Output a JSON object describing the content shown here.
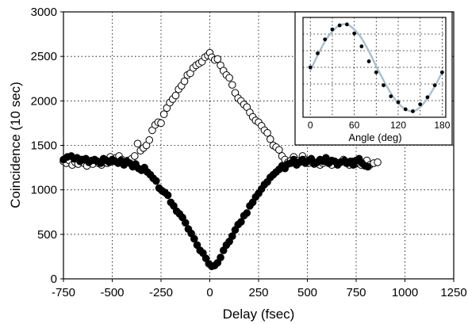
{
  "chart_data": [
    {
      "type": "scatter",
      "xlabel": "Delay (fsec)",
      "ylabel": "Coincidence (10 sec)",
      "xlim": [
        -750,
        1250
      ],
      "ylim": [
        0,
        3000
      ],
      "x_ticks": [
        -750,
        -500,
        -250,
        0,
        250,
        500,
        750,
        1000,
        1250
      ],
      "y_ticks": [
        0,
        500,
        1000,
        1500,
        2000,
        2500,
        3000
      ],
      "x_tick_labels": [
        "-750",
        "-500",
        "-250",
        "0",
        "250",
        "500",
        "750",
        "1000",
        "1250"
      ],
      "y_tick_labels": [
        "0",
        "500",
        "1000",
        "1500",
        "2000",
        "2500",
        "3000"
      ],
      "grid": true,
      "series": [
        {
          "marker": "open-circle",
          "points": [
            [
              -750,
              1320
            ],
            [
              -735,
              1300
            ],
            [
              -720,
              1330
            ],
            [
              -705,
              1280
            ],
            [
              -690,
              1310
            ],
            [
              -675,
              1290
            ],
            [
              -660,
              1340
            ],
            [
              -645,
              1300
            ],
            [
              -630,
              1270
            ],
            [
              -615,
              1320
            ],
            [
              -600,
              1290
            ],
            [
              -585,
              1330
            ],
            [
              -570,
              1300
            ],
            [
              -555,
              1280
            ],
            [
              -540,
              1310
            ],
            [
              -525,
              1300
            ],
            [
              -510,
              1370
            ],
            [
              -495,
              1320
            ],
            [
              -480,
              1360
            ],
            [
              -465,
              1380
            ],
            [
              -450,
              1340
            ],
            [
              -435,
              1300
            ],
            [
              -420,
              1330
            ],
            [
              -400,
              1350
            ],
            [
              -385,
              1380
            ],
            [
              -370,
              1520
            ],
            [
              -355,
              1440
            ],
            [
              -340,
              1470
            ],
            [
              -325,
              1500
            ],
            [
              -310,
              1560
            ],
            [
              -295,
              1670
            ],
            [
              -280,
              1730
            ],
            [
              -265,
              1760
            ],
            [
              -250,
              1750
            ],
            [
              -235,
              1850
            ],
            [
              -220,
              1920
            ],
            [
              -205,
              1980
            ],
            [
              -190,
              2020
            ],
            [
              -175,
              2060
            ],
            [
              -160,
              2130
            ],
            [
              -145,
              2170
            ],
            [
              -130,
              2220
            ],
            [
              -115,
              2290
            ],
            [
              -100,
              2310
            ],
            [
              -85,
              2370
            ],
            [
              -70,
              2400
            ],
            [
              -55,
              2420
            ],
            [
              -40,
              2440
            ],
            [
              -25,
              2490
            ],
            [
              -10,
              2510
            ],
            [
              0,
              2540
            ],
            [
              10,
              2490
            ],
            [
              25,
              2460
            ],
            [
              40,
              2470
            ],
            [
              55,
              2400
            ],
            [
              70,
              2340
            ],
            [
              85,
              2290
            ],
            [
              100,
              2260
            ],
            [
              115,
              2180
            ],
            [
              130,
              2090
            ],
            [
              145,
              2030
            ],
            [
              160,
              2000
            ],
            [
              175,
              1960
            ],
            [
              190,
              1930
            ],
            [
              205,
              1870
            ],
            [
              220,
              1820
            ],
            [
              235,
              1780
            ],
            [
              250,
              1760
            ],
            [
              265,
              1720
            ],
            [
              280,
              1670
            ],
            [
              295,
              1640
            ],
            [
              310,
              1570
            ],
            [
              325,
              1500
            ],
            [
              340,
              1480
            ],
            [
              355,
              1450
            ],
            [
              370,
              1380
            ],
            [
              385,
              1340
            ],
            [
              400,
              1310
            ],
            [
              415,
              1330
            ],
            [
              430,
              1370
            ],
            [
              445,
              1330
            ],
            [
              460,
              1310
            ],
            [
              475,
              1380
            ],
            [
              490,
              1340
            ],
            [
              505,
              1300
            ],
            [
              520,
              1320
            ],
            [
              535,
              1290
            ],
            [
              550,
              1310
            ],
            [
              565,
              1280
            ],
            [
              580,
              1300
            ],
            [
              595,
              1320
            ],
            [
              610,
              1300
            ],
            [
              625,
              1280
            ],
            [
              640,
              1320
            ],
            [
              655,
              1290
            ],
            [
              670,
              1310
            ],
            [
              685,
              1340
            ],
            [
              700,
              1300
            ],
            [
              715,
              1280
            ],
            [
              730,
              1320
            ],
            [
              745,
              1290
            ],
            [
              760,
              1310
            ],
            [
              775,
              1280
            ],
            [
              790,
              1300
            ],
            [
              805,
              1330
            ],
            [
              820,
              1280
            ],
            [
              840,
              1300
            ],
            [
              860,
              1310
            ]
          ]
        },
        {
          "marker": "filled-circle",
          "points": [
            [
              -750,
              1340
            ],
            [
              -730,
              1370
            ],
            [
              -710,
              1380
            ],
            [
              -695,
              1350
            ],
            [
              -680,
              1360
            ],
            [
              -665,
              1320
            ],
            [
              -650,
              1340
            ],
            [
              -635,
              1350
            ],
            [
              -620,
              1310
            ],
            [
              -605,
              1330
            ],
            [
              -590,
              1340
            ],
            [
              -575,
              1320
            ],
            [
              -560,
              1300
            ],
            [
              -545,
              1350
            ],
            [
              -530,
              1330
            ],
            [
              -515,
              1310
            ],
            [
              -500,
              1340
            ],
            [
              -485,
              1320
            ],
            [
              -470,
              1300
            ],
            [
              -455,
              1330
            ],
            [
              -440,
              1280
            ],
            [
              -425,
              1320
            ],
            [
              -410,
              1300
            ],
            [
              -395,
              1260
            ],
            [
              -380,
              1290
            ],
            [
              -365,
              1240
            ],
            [
              -350,
              1220
            ],
            [
              -335,
              1250
            ],
            [
              -320,
              1200
            ],
            [
              -305,
              1170
            ],
            [
              -290,
              1130
            ],
            [
              -275,
              1100
            ],
            [
              -260,
              1020
            ],
            [
              -245,
              990
            ],
            [
              -230,
              970
            ],
            [
              -215,
              940
            ],
            [
              -200,
              860
            ],
            [
              -185,
              820
            ],
            [
              -170,
              760
            ],
            [
              -155,
              730
            ],
            [
              -140,
              690
            ],
            [
              -125,
              630
            ],
            [
              -110,
              560
            ],
            [
              -95,
              510
            ],
            [
              -80,
              450
            ],
            [
              -65,
              380
            ],
            [
              -50,
              320
            ],
            [
              -35,
              290
            ],
            [
              -20,
              230
            ],
            [
              -5,
              170
            ],
            [
              10,
              140
            ],
            [
              25,
              150
            ],
            [
              40,
              180
            ],
            [
              55,
              240
            ],
            [
              70,
              320
            ],
            [
              85,
              380
            ],
            [
              100,
              420
            ],
            [
              115,
              480
            ],
            [
              130,
              550
            ],
            [
              145,
              610
            ],
            [
              160,
              640
            ],
            [
              175,
              710
            ],
            [
              190,
              740
            ],
            [
              205,
              820
            ],
            [
              220,
              860
            ],
            [
              235,
              920
            ],
            [
              250,
              960
            ],
            [
              265,
              1010
            ],
            [
              280,
              1060
            ],
            [
              295,
              1090
            ],
            [
              310,
              1140
            ],
            [
              325,
              1170
            ],
            [
              340,
              1200
            ],
            [
              355,
              1230
            ],
            [
              370,
              1270
            ],
            [
              385,
              1240
            ],
            [
              400,
              1290
            ],
            [
              415,
              1300
            ],
            [
              430,
              1340
            ],
            [
              445,
              1280
            ],
            [
              460,
              1310
            ],
            [
              475,
              1340
            ],
            [
              490,
              1300
            ],
            [
              505,
              1330
            ],
            [
              520,
              1350
            ],
            [
              535,
              1300
            ],
            [
              550,
              1310
            ],
            [
              565,
              1340
            ],
            [
              580,
              1320
            ],
            [
              595,
              1360
            ],
            [
              610,
              1300
            ],
            [
              625,
              1330
            ],
            [
              640,
              1320
            ],
            [
              655,
              1280
            ],
            [
              670,
              1310
            ],
            [
              690,
              1330
            ],
            [
              705,
              1300
            ],
            [
              720,
              1320
            ],
            [
              735,
              1280
            ],
            [
              750,
              1330
            ],
            [
              765,
              1350
            ],
            [
              780,
              1300
            ],
            [
              795,
              1270
            ],
            [
              810,
              1260
            ]
          ]
        }
      ]
    },
    {
      "type": "scatter",
      "xlabel": "Angle (deg)",
      "xlim": [
        -10,
        185
      ],
      "ylim": [
        0,
        1
      ],
      "x_ticks": [
        0,
        60,
        120,
        180
      ],
      "x_tick_labels": [
        "0",
        "60",
        "120",
        "180"
      ],
      "grid": true,
      "series": [
        {
          "marker": "filled-dot",
          "points": [
            [
              0,
              0.5
            ],
            [
              10,
              0.64
            ],
            [
              20,
              0.78
            ],
            [
              30,
              0.88
            ],
            [
              40,
              0.92
            ],
            [
              50,
              0.93
            ],
            [
              60,
              0.84
            ],
            [
              70,
              0.71
            ],
            [
              80,
              0.56
            ],
            [
              90,
              0.45
            ],
            [
              100,
              0.32
            ],
            [
              110,
              0.21
            ],
            [
              120,
              0.15
            ],
            [
              130,
              0.08
            ],
            [
              140,
              0.06
            ],
            [
              150,
              0.13
            ],
            [
              160,
              0.2
            ],
            [
              170,
              0.32
            ],
            [
              180,
              0.45
            ]
          ]
        },
        {
          "marker": "line",
          "color": "#a9bfcf",
          "points": [
            [
              0,
              0.47
            ],
            [
              10,
              0.62
            ],
            [
              20,
              0.76
            ],
            [
              30,
              0.86
            ],
            [
              40,
              0.92
            ],
            [
              50,
              0.93
            ],
            [
              60,
              0.88
            ],
            [
              70,
              0.79
            ],
            [
              80,
              0.66
            ],
            [
              90,
              0.51
            ],
            [
              100,
              0.37
            ],
            [
              110,
              0.24
            ],
            [
              120,
              0.14
            ],
            [
              130,
              0.08
            ],
            [
              140,
              0.06
            ],
            [
              150,
              0.1
            ],
            [
              160,
              0.19
            ],
            [
              170,
              0.31
            ],
            [
              180,
              0.45
            ]
          ]
        }
      ]
    }
  ]
}
